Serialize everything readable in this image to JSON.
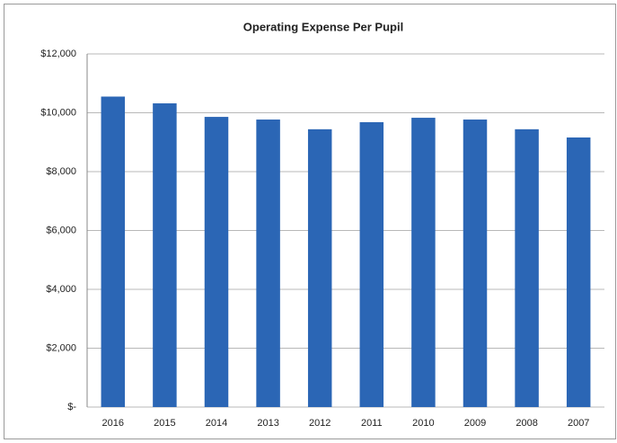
{
  "chart_data": {
    "type": "bar",
    "title": "Operating Expense Per Pupil",
    "categories": [
      "2016",
      "2015",
      "2014",
      "2013",
      "2012",
      "2011",
      "2010",
      "2009",
      "2008",
      "2007"
    ],
    "values": [
      10550,
      10320,
      9860,
      9770,
      9440,
      9680,
      9830,
      9770,
      9440,
      9160
    ],
    "color": "#2b66b5",
    "ylim": [
      0,
      12000
    ],
    "yticks": [
      {
        "value": 0,
        "label": "$-"
      },
      {
        "value": 2000,
        "label": "$2,000"
      },
      {
        "value": 4000,
        "label": "$4,000"
      },
      {
        "value": 6000,
        "label": "$6,000"
      },
      {
        "value": 8000,
        "label": "$8,000"
      },
      {
        "value": 10000,
        "label": "$10,000"
      },
      {
        "value": 12000,
        "label": "$12,000"
      }
    ],
    "grid": true
  }
}
